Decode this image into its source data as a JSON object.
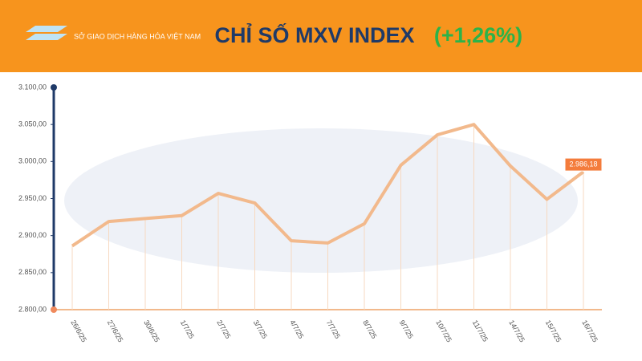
{
  "chart_data": {
    "type": "line",
    "logo_text": "SỞ GIAO DỊCH HÀNG HÓA VIỆT NAM",
    "title": "CHỈ SỐ MXV INDEX",
    "title_change": "(+1,26%)",
    "categories": [
      "26/6/25",
      "27/6/25",
      "30/6/25",
      "1/7/25",
      "2/7/25",
      "3/7/25",
      "4/7/25",
      "7/7/25",
      "8/7/25",
      "9/7/25",
      "10/7/25",
      "11/7/25",
      "14/7/25",
      "15/7/25",
      "16/7/25"
    ],
    "values": [
      2886,
      2919,
      2923,
      2927,
      2957,
      2944,
      2893,
      2890,
      2916,
      2995,
      3036,
      3050,
      2994,
      2949,
      2986.18
    ],
    "value_labels": [
      null,
      null,
      null,
      null,
      null,
      null,
      null,
      null,
      null,
      null,
      null,
      null,
      null,
      null,
      "2.986,18"
    ],
    "color": "#f2b98c",
    "ylim": [
      2800,
      3100
    ],
    "yticks": [
      {
        "value": 2800,
        "label": "2.800,00"
      },
      {
        "value": 2850,
        "label": "2.850,00"
      },
      {
        "value": 2900,
        "label": "2.900,00"
      },
      {
        "value": 2950,
        "label": "2.950,00"
      },
      {
        "value": 3000,
        "label": "3.000,00"
      },
      {
        "value": 3050,
        "label": "3.050,00"
      },
      {
        "value": 3100,
        "label": "3.100,00"
      }
    ]
  }
}
